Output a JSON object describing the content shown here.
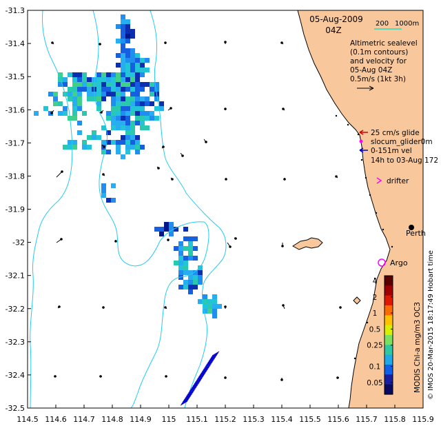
{
  "map": {
    "date": "05-Aug-2009",
    "time": "04Z",
    "scale_bar": {
      "left_label": "200",
      "right_label": "1000m"
    },
    "sealevel_note": [
      "Altimetric sealevel",
      "(0.1m contours)",
      "and velocity for",
      "05-Aug 04Z",
      "0.5m/s (1kt 3h)"
    ],
    "legend": {
      "glide": "25 cm/s glide",
      "slocum": "slocum_glider0m",
      "vel": "0-151m vel",
      "vel_range": "14h to 03-Aug 172",
      "drifter": "drifter",
      "argo": "Argo",
      "perth": "Perth"
    },
    "x_ticks": [
      "114.5",
      "114.6",
      "114.7",
      "114.8",
      "114.9",
      "115",
      "115.1",
      "115.2",
      "115.3",
      "115.4",
      "115.5",
      "115.6",
      "115.7",
      "115.8",
      "115.9"
    ],
    "y_ticks": [
      "-31.3",
      "-31.4",
      "-31.5",
      "-31.6",
      "-31.7",
      "-31.8",
      "-31.9",
      "-32",
      "-32.1",
      "-32.2",
      "-32.3",
      "-32.4",
      "-32.5"
    ],
    "x_range": [
      114.5,
      115.9
    ],
    "y_range": [
      -32.5,
      -31.3
    ],
    "colorbar": {
      "label": "MODIS Chl-a mg/m3 OC3",
      "ticks": [
        "4",
        "2",
        "1",
        "0.5",
        "0.25",
        "0.1",
        "0.05"
      ],
      "tick_values": [
        4,
        2,
        1,
        0.5,
        0.25,
        0.1,
        0.05
      ],
      "range": [
        0.03,
        5
      ],
      "scale": "log"
    },
    "credit": "© IMOS 20-Mar-2015 18:17:49 Hobart time",
    "colors": {
      "land": "#f8c89c",
      "contour": "#22ccee",
      "scale_bar": "#22ddbb",
      "glide_arrow": "#cc0000",
      "slocum": "#ff00ff",
      "vel_arrow": "#0000cc",
      "drifter": "#ff00ff",
      "argo": "#ff00ff"
    }
  }
}
